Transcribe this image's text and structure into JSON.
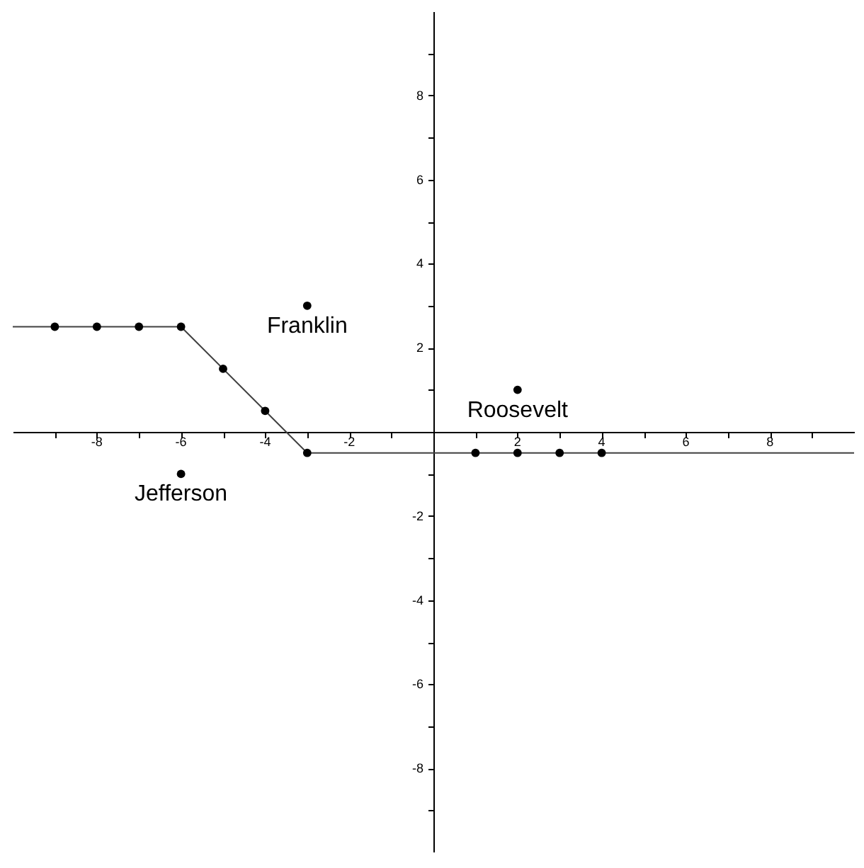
{
  "chart_data": {
    "type": "scatter",
    "xlim": [
      -10,
      10
    ],
    "ylim": [
      -10,
      10
    ],
    "xticks": [
      {
        "value": -9,
        "label": null
      },
      {
        "value": -8,
        "label": "-8"
      },
      {
        "value": -7,
        "label": null
      },
      {
        "value": -6,
        "label": "-6"
      },
      {
        "value": -5,
        "label": null
      },
      {
        "value": -4,
        "label": "-4"
      },
      {
        "value": -3,
        "label": null
      },
      {
        "value": -2,
        "label": "-2"
      },
      {
        "value": -1,
        "label": null
      },
      {
        "value": 1,
        "label": null
      },
      {
        "value": 2,
        "label": "2"
      },
      {
        "value": 3,
        "label": null
      },
      {
        "value": 4,
        "label": "4"
      },
      {
        "value": 5,
        "label": null
      },
      {
        "value": 6,
        "label": "6"
      },
      {
        "value": 7,
        "label": null
      },
      {
        "value": 8,
        "label": "8"
      },
      {
        "value": 9,
        "label": null
      }
    ],
    "yticks": [
      {
        "value": -9,
        "label": null
      },
      {
        "value": -8,
        "label": "-8"
      },
      {
        "value": -7,
        "label": null
      },
      {
        "value": -6,
        "label": "-6"
      },
      {
        "value": -5,
        "label": null
      },
      {
        "value": -4,
        "label": "-4"
      },
      {
        "value": -3,
        "label": null
      },
      {
        "value": -2,
        "label": "-2"
      },
      {
        "value": -1,
        "label": null
      },
      {
        "value": 1,
        "label": null
      },
      {
        "value": 2,
        "label": "2"
      },
      {
        "value": 3,
        "label": null
      },
      {
        "value": 4,
        "label": "4"
      },
      {
        "value": 5,
        "label": null
      },
      {
        "value": 6,
        "label": "6"
      },
      {
        "value": 7,
        "label": null
      },
      {
        "value": 8,
        "label": "8"
      },
      {
        "value": 9,
        "label": null
      }
    ],
    "grid": false,
    "marker": "circle",
    "series": [
      {
        "type": "line",
        "marker": "none",
        "color": "#404040",
        "x": [
          -10,
          -6,
          -3,
          10
        ],
        "values": [
          2.5,
          2.5,
          -0.5,
          -0.5
        ]
      },
      {
        "color": "#000000",
        "x": [
          -9,
          -8,
          -7,
          -6,
          -5,
          -4,
          -3,
          1,
          2,
          3,
          4
        ],
        "values": [
          2.5,
          2.5,
          2.5,
          2.5,
          1.5,
          0.5,
          -0.5,
          -0.5,
          -0.5,
          -0.5,
          -0.5
        ]
      },
      {
        "color": "#000000",
        "x": [
          -3,
          2,
          -6
        ],
        "values": [
          3,
          1,
          -1
        ]
      }
    ],
    "annotations": [
      {
        "text": "Franklin",
        "x": -3,
        "y": 3
      },
      {
        "text": "Roosevelt",
        "x": 2,
        "y": 1
      },
      {
        "text": "Jefferson",
        "x": -6,
        "y": -1
      }
    ]
  }
}
